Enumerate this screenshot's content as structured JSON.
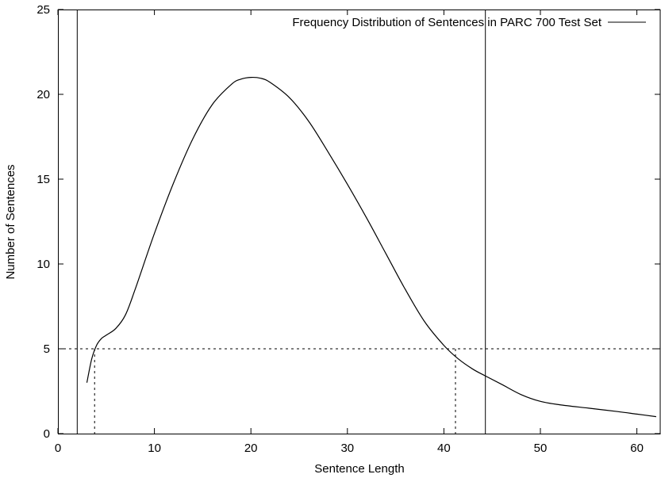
{
  "chart_data": {
    "type": "line",
    "title": "",
    "xlabel": "Sentence Length",
    "ylabel": "Number of Sentences",
    "xlim": [
      0,
      62.5
    ],
    "ylim": [
      0,
      25
    ],
    "x_ticks": [
      0,
      10,
      20,
      30,
      40,
      50,
      60
    ],
    "y_ticks": [
      0,
      5,
      10,
      15,
      20,
      25
    ],
    "grid": false,
    "legend_position": "top-right",
    "series": [
      {
        "name": "Frequency Distribution of Sentences in PARC 700 Test Set",
        "x": [
          3,
          3.5,
          4,
          4.5,
          5,
          6,
          7,
          8,
          10,
          12,
          14,
          16,
          18,
          19,
          20,
          21,
          22,
          24,
          26,
          28,
          30,
          32,
          34,
          36,
          38,
          40,
          41.5,
          43,
          44.3,
          46,
          48,
          50,
          52,
          55,
          58,
          60,
          62
        ],
        "y": [
          3.0,
          4.4,
          5.2,
          5.6,
          5.8,
          6.2,
          7.0,
          8.5,
          11.8,
          14.8,
          17.4,
          19.4,
          20.6,
          20.9,
          21.0,
          20.95,
          20.7,
          19.8,
          18.4,
          16.6,
          14.7,
          12.7,
          10.6,
          8.5,
          6.6,
          5.2,
          4.4,
          3.8,
          3.4,
          2.9,
          2.3,
          1.9,
          1.7,
          1.5,
          1.3,
          1.15,
          1.0
        ]
      }
    ],
    "reference_lines": {
      "vertical_solid": [
        2,
        44.3
      ],
      "horizontal_dashed": 5,
      "vertical_dashed": [
        3.8,
        41.2
      ]
    }
  }
}
